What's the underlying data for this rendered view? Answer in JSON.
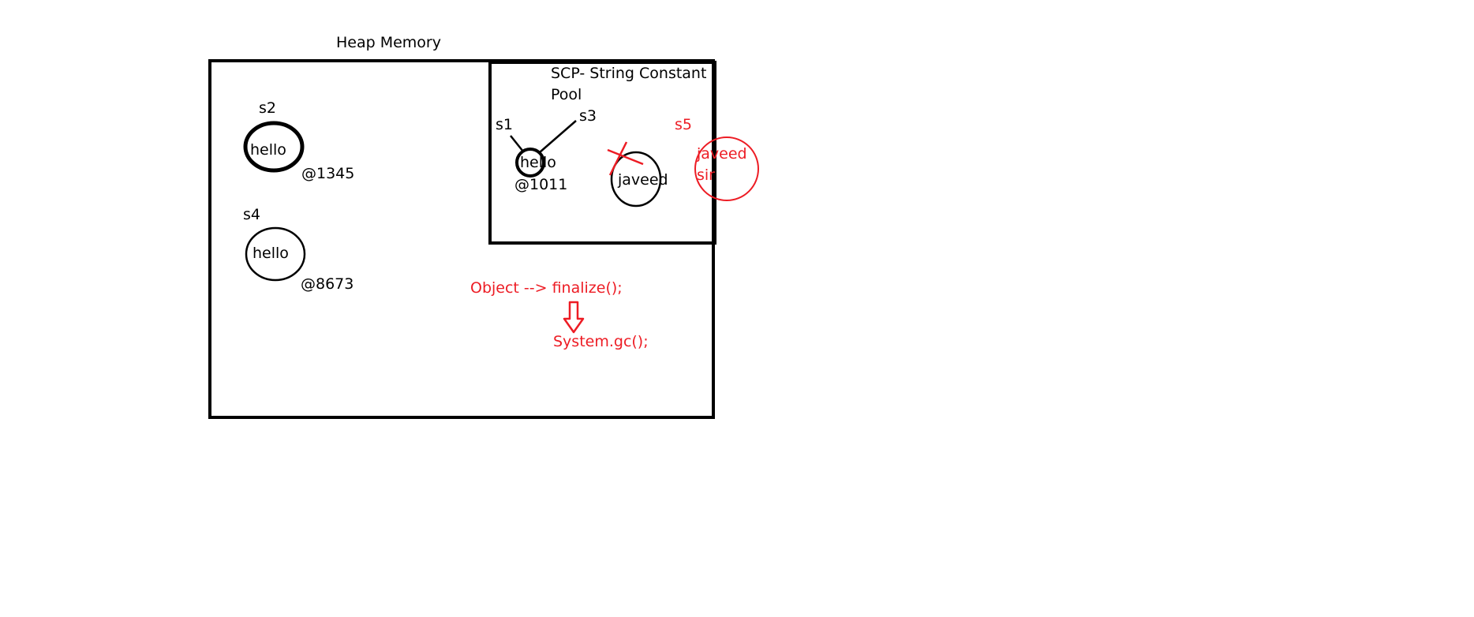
{
  "heap": {
    "title": "Heap Memory"
  },
  "scp": {
    "title_line1": "SCP- String Constant",
    "title_line2": "Pool"
  },
  "objects": {
    "s2": {
      "var": "s2",
      "value": "hello",
      "address": "@1345"
    },
    "s4": {
      "var": "s4",
      "value": "hello",
      "address": "@8673"
    },
    "s1": {
      "var": "s1"
    },
    "s3": {
      "var": "s3"
    },
    "scp_hello": {
      "value": "hello",
      "address": "@1011"
    },
    "javeed": {
      "value": "javeed"
    },
    "s5": {
      "var": "s5",
      "value_line1": "javeed",
      "value_line2": "sir"
    }
  },
  "gc": {
    "finalize_text": "Object --> finalize();",
    "system_gc_text": "System.gc();"
  },
  "colors": {
    "ink": "#000000",
    "annotation": "#ed1c24",
    "background": "#ffffff"
  }
}
